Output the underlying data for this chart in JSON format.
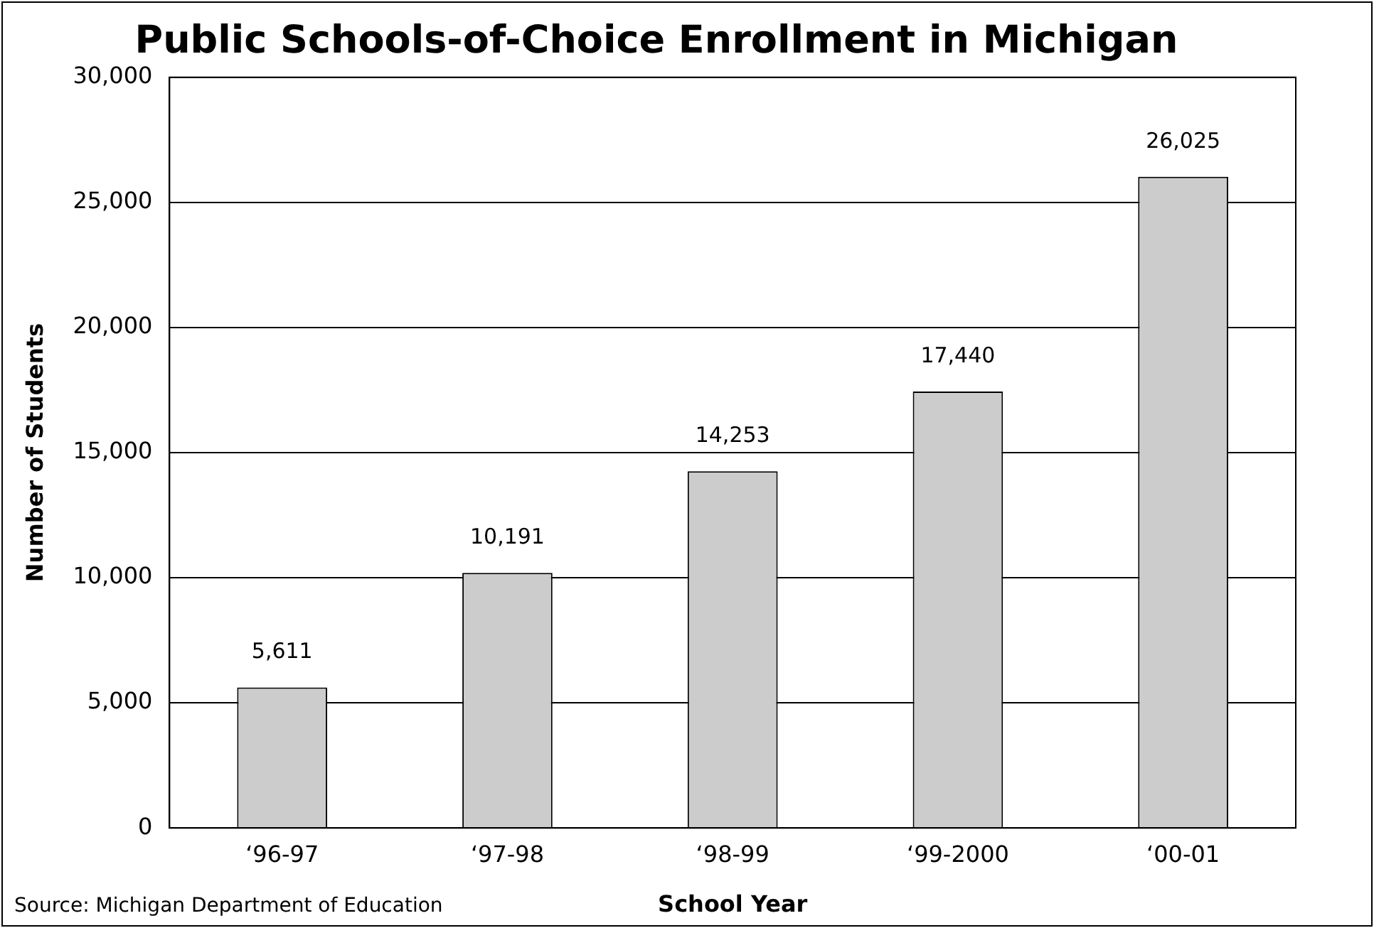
{
  "chart_data": {
    "type": "bar",
    "title": "Public Schools-of-Choice Enrollment in Michigan",
    "xlabel": "School Year",
    "ylabel": "Number of Students",
    "categories": [
      "‘96-97",
      "‘97-98",
      "‘98-99",
      "‘99-2000",
      "‘00-01"
    ],
    "values": [
      5611,
      10191,
      14253,
      17440,
      26025
    ],
    "color": "#cccccc",
    "value_labels": [
      "5,611",
      "10,191",
      "14,253",
      "17,440",
      "26,025"
    ],
    "ylim": [
      0,
      30000
    ],
    "yticks": [
      0,
      {
        "value": 5000,
        "label": "5,000"
      },
      {
        "value": 10000,
        "label": "10,000"
      },
      {
        "value": 15000,
        "label": "15,000"
      },
      {
        "value": 20000,
        "label": "20,000"
      },
      {
        "value": 25000,
        "label": "25,000"
      },
      {
        "value": 30000,
        "label": "30,000"
      }
    ],
    "grid": "y",
    "annotations": [
      "Source: Michigan Department of Education"
    ]
  }
}
